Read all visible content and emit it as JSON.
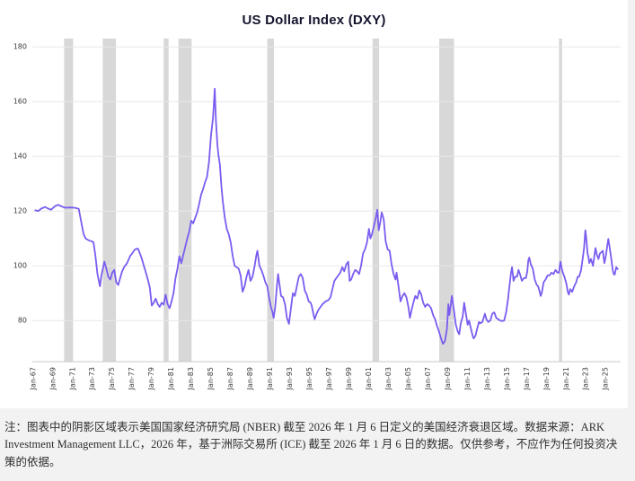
{
  "chart": {
    "title": "US Dollar Index (DXY)"
  },
  "footnote": {
    "text": "注：图表中的阴影区域表示美国国家经济研究局 (NBER) 截至 2026 年 1 月 6 日定义的美国经济衰退区域。数据来源：ARK Investment Management LLC，2026 年，基于洲际交易所 (ICE) 截至 2026 年 1 月 6 日的数据。仅供参考，不应作为任何投资决策的依据。"
  },
  "chart_data": {
    "type": "line",
    "title": "US Dollar Index (DXY)",
    "series_name": "DXY",
    "xlabel": "",
    "ylabel": "",
    "xlim": [
      1966.7,
      2026.3
    ],
    "ylim": [
      65,
      183
    ],
    "yticks": [
      80,
      100,
      120,
      140,
      160,
      180
    ],
    "xticks": [
      {
        "year": 1967,
        "label": "Jan-67"
      },
      {
        "year": 1969,
        "label": "Jan-69"
      },
      {
        "year": 1971,
        "label": "Jan-71"
      },
      {
        "year": 1973,
        "label": "Jan-73"
      },
      {
        "year": 1975,
        "label": "Jan-75"
      },
      {
        "year": 1977,
        "label": "Jan-77"
      },
      {
        "year": 1979,
        "label": "Jan-79"
      },
      {
        "year": 1981,
        "label": "Jan-81"
      },
      {
        "year": 1983,
        "label": "Jan-83"
      },
      {
        "year": 1985,
        "label": "Jan-85"
      },
      {
        "year": 1987,
        "label": "Jan-87"
      },
      {
        "year": 1989,
        "label": "Jan-89"
      },
      {
        "year": 1991,
        "label": "Jan-91"
      },
      {
        "year": 1993,
        "label": "Jan-93"
      },
      {
        "year": 1995,
        "label": "Jan-95"
      },
      {
        "year": 1997,
        "label": "Jan-97"
      },
      {
        "year": 1999,
        "label": "Jan-99"
      },
      {
        "year": 2001,
        "label": "Jan-01"
      },
      {
        "year": 2003,
        "label": "Jan-03"
      },
      {
        "year": 2005,
        "label": "Jan-05"
      },
      {
        "year": 2007,
        "label": "Jan-07"
      },
      {
        "year": 2009,
        "label": "Jan-09"
      },
      {
        "year": 2011,
        "label": "Jan-11"
      },
      {
        "year": 2013,
        "label": "Jan-13"
      },
      {
        "year": 2015,
        "label": "Jan-15"
      },
      {
        "year": 2017,
        "label": "Jan-17"
      },
      {
        "year": 2019,
        "label": "Jan-19"
      },
      {
        "year": 2021,
        "label": "Jan-21"
      },
      {
        "year": 2023,
        "label": "Jan-23"
      },
      {
        "year": 2025,
        "label": "Jan-25"
      }
    ],
    "recessions": [
      [
        1969.92,
        1970.83
      ],
      [
        1973.83,
        1975.17
      ],
      [
        1980.0,
        1980.5
      ],
      [
        1981.5,
        1982.83
      ],
      [
        1990.5,
        1991.17
      ],
      [
        2001.17,
        2001.83
      ],
      [
        2007.92,
        2009.42
      ],
      [
        2020.05,
        2020.38
      ]
    ],
    "grid": "horizontal",
    "legend": "none",
    "line_color": "#7a5cf0",
    "band_color": "#d8d8d8",
    "grid_color": "#e7e7e7",
    "axis_color": "#c9c9c9",
    "points": [
      [
        1967.0,
        120.3
      ],
      [
        1967.3,
        120.0
      ],
      [
        1967.6,
        120.9
      ],
      [
        1968.0,
        121.5
      ],
      [
        1968.3,
        120.9
      ],
      [
        1968.6,
        120.5
      ],
      [
        1969.0,
        121.8
      ],
      [
        1969.3,
        122.3
      ],
      [
        1969.6,
        121.8
      ],
      [
        1970.0,
        121.2
      ],
      [
        1970.5,
        121.3
      ],
      [
        1971.0,
        121.2
      ],
      [
        1971.4,
        120.8
      ],
      [
        1971.6,
        117.0
      ],
      [
        1971.9,
        111.5
      ],
      [
        1972.1,
        110.0
      ],
      [
        1972.4,
        109.3
      ],
      [
        1972.7,
        109.0
      ],
      [
        1972.9,
        108.6
      ],
      [
        1973.1,
        103.5
      ],
      [
        1973.3,
        97.0
      ],
      [
        1973.55,
        92.5
      ],
      [
        1973.7,
        96.5
      ],
      [
        1973.85,
        99.0
      ],
      [
        1974.0,
        101.5
      ],
      [
        1974.2,
        99.0
      ],
      [
        1974.4,
        96.0
      ],
      [
        1974.6,
        95.0
      ],
      [
        1974.8,
        97.5
      ],
      [
        1975.0,
        98.5
      ],
      [
        1975.2,
        94.0
      ],
      [
        1975.4,
        93.0
      ],
      [
        1975.6,
        95.5
      ],
      [
        1975.8,
        98.0
      ],
      [
        1976.0,
        99.5
      ],
      [
        1976.3,
        101.0
      ],
      [
        1976.6,
        103.5
      ],
      [
        1976.9,
        105.0
      ],
      [
        1977.1,
        106.0
      ],
      [
        1977.4,
        106.3
      ],
      [
        1977.6,
        104.5
      ],
      [
        1977.8,
        102.5
      ],
      [
        1978.0,
        100.0
      ],
      [
        1978.2,
        97.5
      ],
      [
        1978.4,
        95.0
      ],
      [
        1978.6,
        92.0
      ],
      [
        1978.8,
        85.5
      ],
      [
        1979.0,
        86.5
      ],
      [
        1979.2,
        88.0
      ],
      [
        1979.4,
        86.0
      ],
      [
        1979.6,
        85.0
      ],
      [
        1979.8,
        86.5
      ],
      [
        1980.0,
        85.8
      ],
      [
        1980.2,
        89.5
      ],
      [
        1980.4,
        86.0
      ],
      [
        1980.6,
        84.5
      ],
      [
        1980.8,
        87.0
      ],
      [
        1981.0,
        90.0
      ],
      [
        1981.2,
        95.5
      ],
      [
        1981.4,
        99.0
      ],
      [
        1981.6,
        103.5
      ],
      [
        1981.8,
        101.0
      ],
      [
        1982.0,
        104.0
      ],
      [
        1982.2,
        107.0
      ],
      [
        1982.4,
        110.0
      ],
      [
        1982.6,
        112.5
      ],
      [
        1982.8,
        116.5
      ],
      [
        1983.0,
        115.5
      ],
      [
        1983.2,
        117.5
      ],
      [
        1983.4,
        119.5
      ],
      [
        1983.6,
        122.5
      ],
      [
        1983.8,
        126.0
      ],
      [
        1984.0,
        128.0
      ],
      [
        1984.2,
        130.5
      ],
      [
        1984.4,
        132.5
      ],
      [
        1984.6,
        138.0
      ],
      [
        1984.8,
        147.5
      ],
      [
        1985.0,
        154.0
      ],
      [
        1985.1,
        159.5
      ],
      [
        1985.18,
        164.7
      ],
      [
        1985.3,
        153.0
      ],
      [
        1985.45,
        144.0
      ],
      [
        1985.55,
        140.5
      ],
      [
        1985.7,
        137.0
      ],
      [
        1985.85,
        129.0
      ],
      [
        1986.0,
        123.5
      ],
      [
        1986.2,
        117.5
      ],
      [
        1986.4,
        113.5
      ],
      [
        1986.6,
        111.5
      ],
      [
        1986.8,
        108.5
      ],
      [
        1987.0,
        103.5
      ],
      [
        1987.2,
        100.0
      ],
      [
        1987.4,
        99.5
      ],
      [
        1987.6,
        99.0
      ],
      [
        1987.8,
        96.5
      ],
      [
        1988.0,
        90.5
      ],
      [
        1988.2,
        92.5
      ],
      [
        1988.4,
        96.0
      ],
      [
        1988.6,
        98.5
      ],
      [
        1988.8,
        94.5
      ],
      [
        1989.0,
        96.0
      ],
      [
        1989.2,
        99.5
      ],
      [
        1989.4,
        104.0
      ],
      [
        1989.5,
        105.5
      ],
      [
        1989.7,
        100.0
      ],
      [
        1989.9,
        98.5
      ],
      [
        1990.1,
        96.5
      ],
      [
        1990.3,
        94.0
      ],
      [
        1990.5,
        92.5
      ],
      [
        1990.7,
        88.0
      ],
      [
        1990.9,
        84.5
      ],
      [
        1991.0,
        83.5
      ],
      [
        1991.15,
        81.0
      ],
      [
        1991.3,
        85.0
      ],
      [
        1991.5,
        93.5
      ],
      [
        1991.6,
        97.0
      ],
      [
        1991.75,
        93.0
      ],
      [
        1991.9,
        89.0
      ],
      [
        1992.1,
        88.5
      ],
      [
        1992.3,
        86.0
      ],
      [
        1992.5,
        81.0
      ],
      [
        1992.7,
        78.8
      ],
      [
        1992.9,
        84.5
      ],
      [
        1993.1,
        90.0
      ],
      [
        1993.3,
        89.0
      ],
      [
        1993.5,
        92.5
      ],
      [
        1993.7,
        96.0
      ],
      [
        1993.9,
        97.0
      ],
      [
        1994.1,
        95.5
      ],
      [
        1994.3,
        91.0
      ],
      [
        1994.5,
        89.5
      ],
      [
        1994.7,
        87.0
      ],
      [
        1994.9,
        86.5
      ],
      [
        1995.0,
        85.5
      ],
      [
        1995.2,
        82.0
      ],
      [
        1995.3,
        80.5
      ],
      [
        1995.5,
        82.5
      ],
      [
        1995.7,
        84.0
      ],
      [
        1995.9,
        85.0
      ],
      [
        1996.1,
        86.0
      ],
      [
        1996.4,
        87.0
      ],
      [
        1996.7,
        87.5
      ],
      [
        1996.9,
        88.5
      ],
      [
        1997.1,
        91.5
      ],
      [
        1997.3,
        94.5
      ],
      [
        1997.5,
        95.5
      ],
      [
        1997.7,
        96.5
      ],
      [
        1997.9,
        97.5
      ],
      [
        1998.1,
        99.5
      ],
      [
        1998.3,
        98.0
      ],
      [
        1998.5,
        100.5
      ],
      [
        1998.7,
        101.5
      ],
      [
        1998.85,
        94.5
      ],
      [
        1999.0,
        95.0
      ],
      [
        1999.2,
        97.0
      ],
      [
        1999.4,
        98.5
      ],
      [
        1999.6,
        98.0
      ],
      [
        1999.8,
        97.0
      ],
      [
        2000.0,
        100.0
      ],
      [
        2000.2,
        104.5
      ],
      [
        2000.4,
        106.0
      ],
      [
        2000.6,
        108.5
      ],
      [
        2000.8,
        113.5
      ],
      [
        2000.95,
        110.0
      ],
      [
        2001.1,
        111.5
      ],
      [
        2001.3,
        114.5
      ],
      [
        2001.5,
        117.5
      ],
      [
        2001.65,
        120.5
      ],
      [
        2001.8,
        113.0
      ],
      [
        2001.95,
        116.0
      ],
      [
        2002.1,
        119.5
      ],
      [
        2002.3,
        117.0
      ],
      [
        2002.5,
        109.0
      ],
      [
        2002.7,
        106.0
      ],
      [
        2002.9,
        105.5
      ],
      [
        2003.1,
        100.5
      ],
      [
        2003.3,
        97.0
      ],
      [
        2003.5,
        95.0
      ],
      [
        2003.6,
        97.5
      ],
      [
        2003.8,
        92.5
      ],
      [
        2004.0,
        87.0
      ],
      [
        2004.2,
        89.0
      ],
      [
        2004.4,
        90.0
      ],
      [
        2004.6,
        88.5
      ],
      [
        2004.8,
        85.0
      ],
      [
        2004.95,
        81.0
      ],
      [
        2005.1,
        83.5
      ],
      [
        2005.3,
        86.5
      ],
      [
        2005.5,
        89.0
      ],
      [
        2005.7,
        88.0
      ],
      [
        2005.9,
        91.0
      ],
      [
        2006.1,
        89.5
      ],
      [
        2006.3,
        86.5
      ],
      [
        2006.5,
        85.0
      ],
      [
        2006.7,
        86.0
      ],
      [
        2006.9,
        85.5
      ],
      [
        2007.1,
        84.5
      ],
      [
        2007.3,
        82.0
      ],
      [
        2007.5,
        80.5
      ],
      [
        2007.7,
        78.0
      ],
      [
        2007.9,
        76.0
      ],
      [
        2008.1,
        73.5
      ],
      [
        2008.3,
        71.5
      ],
      [
        2008.5,
        72.5
      ],
      [
        2008.7,
        77.0
      ],
      [
        2008.85,
        86.0
      ],
      [
        2008.95,
        82.0
      ],
      [
        2009.1,
        86.0
      ],
      [
        2009.2,
        89.0
      ],
      [
        2009.4,
        84.0
      ],
      [
        2009.6,
        78.5
      ],
      [
        2009.8,
        76.0
      ],
      [
        2009.95,
        75.0
      ],
      [
        2010.1,
        79.0
      ],
      [
        2010.3,
        81.5
      ],
      [
        2010.45,
        86.5
      ],
      [
        2010.6,
        83.0
      ],
      [
        2010.8,
        78.5
      ],
      [
        2010.95,
        80.0
      ],
      [
        2011.1,
        77.5
      ],
      [
        2011.3,
        74.5
      ],
      [
        2011.4,
        73.5
      ],
      [
        2011.6,
        74.5
      ],
      [
        2011.8,
        77.5
      ],
      [
        2011.95,
        79.5
      ],
      [
        2012.1,
        79.0
      ],
      [
        2012.3,
        79.5
      ],
      [
        2012.55,
        82.5
      ],
      [
        2012.7,
        80.5
      ],
      [
        2012.9,
        79.5
      ],
      [
        2013.1,
        80.0
      ],
      [
        2013.3,
        82.5
      ],
      [
        2013.5,
        83.0
      ],
      [
        2013.7,
        81.0
      ],
      [
        2013.9,
        80.5
      ],
      [
        2014.1,
        80.0
      ],
      [
        2014.3,
        79.8
      ],
      [
        2014.5,
        80.0
      ],
      [
        2014.7,
        83.0
      ],
      [
        2014.9,
        88.0
      ],
      [
        2015.0,
        91.5
      ],
      [
        2015.2,
        97.5
      ],
      [
        2015.3,
        99.5
      ],
      [
        2015.45,
        94.5
      ],
      [
        2015.6,
        96.0
      ],
      [
        2015.8,
        96.0
      ],
      [
        2015.95,
        98.5
      ],
      [
        2016.1,
        97.0
      ],
      [
        2016.3,
        94.5
      ],
      [
        2016.5,
        95.5
      ],
      [
        2016.7,
        95.5
      ],
      [
        2016.85,
        98.0
      ],
      [
        2016.95,
        102.0
      ],
      [
        2017.05,
        103.0
      ],
      [
        2017.2,
        100.5
      ],
      [
        2017.4,
        99.0
      ],
      [
        2017.6,
        95.0
      ],
      [
        2017.8,
        93.0
      ],
      [
        2017.95,
        92.5
      ],
      [
        2018.1,
        90.5
      ],
      [
        2018.2,
        89.0
      ],
      [
        2018.3,
        90.0
      ],
      [
        2018.5,
        94.0
      ],
      [
        2018.7,
        95.0
      ],
      [
        2018.9,
        96.5
      ],
      [
        2019.1,
        96.5
      ],
      [
        2019.3,
        97.5
      ],
      [
        2019.5,
        97.0
      ],
      [
        2019.7,
        98.5
      ],
      [
        2019.9,
        97.5
      ],
      [
        2020.05,
        97.5
      ],
      [
        2020.2,
        101.5
      ],
      [
        2020.3,
        99.5
      ],
      [
        2020.45,
        97.5
      ],
      [
        2020.6,
        96.0
      ],
      [
        2020.8,
        93.5
      ],
      [
        2020.95,
        90.5
      ],
      [
        2021.05,
        89.5
      ],
      [
        2021.2,
        91.5
      ],
      [
        2021.4,
        90.5
      ],
      [
        2021.6,
        92.5
      ],
      [
        2021.8,
        94.0
      ],
      [
        2021.95,
        96.0
      ],
      [
        2022.1,
        96.0
      ],
      [
        2022.3,
        98.5
      ],
      [
        2022.45,
        102.5
      ],
      [
        2022.6,
        106.5
      ],
      [
        2022.72,
        113.0
      ],
      [
        2022.8,
        111.0
      ],
      [
        2022.95,
        104.5
      ],
      [
        2023.05,
        103.0
      ],
      [
        2023.12,
        101.0
      ],
      [
        2023.3,
        102.5
      ],
      [
        2023.5,
        100.0
      ],
      [
        2023.75,
        106.5
      ],
      [
        2023.9,
        104.0
      ],
      [
        2024.05,
        102.5
      ],
      [
        2024.2,
        104.5
      ],
      [
        2024.35,
        105.0
      ],
      [
        2024.5,
        105.5
      ],
      [
        2024.65,
        101.0
      ],
      [
        2024.8,
        103.5
      ],
      [
        2024.95,
        107.5
      ],
      [
        2025.05,
        109.8
      ],
      [
        2025.15,
        107.5
      ],
      [
        2025.3,
        104.0
      ],
      [
        2025.5,
        98.5
      ],
      [
        2025.6,
        97.0
      ],
      [
        2025.7,
        96.8
      ],
      [
        2025.85,
        99.5
      ],
      [
        2026.0,
        98.8
      ]
    ]
  }
}
